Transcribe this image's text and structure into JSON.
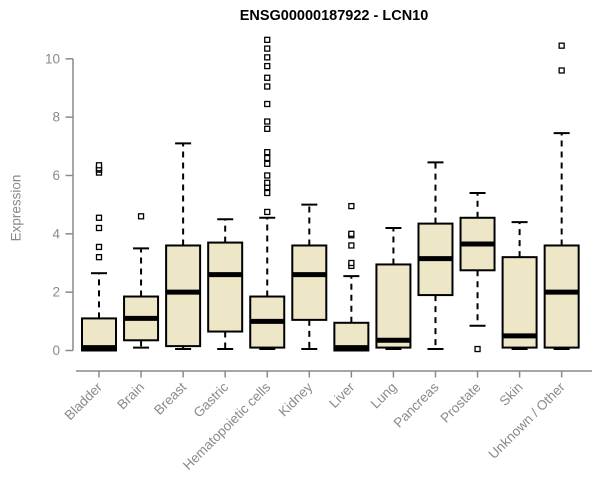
{
  "chart_data": {
    "type": "boxplot",
    "title": "ENSG00000187922 - LCN10",
    "xlabel": "",
    "ylabel": "Expression",
    "ylim": [
      0,
      10
    ],
    "yticks": [
      0,
      2,
      4,
      6,
      8,
      10
    ],
    "grid": false,
    "categories": [
      "Bladder",
      "Brain",
      "Breast",
      "Gastric",
      "Hematopoietic cells",
      "Kidney",
      "Liver",
      "Lung",
      "Pancreas",
      "Prostate",
      "Skin",
      "Unknown / Other"
    ],
    "series": [
      {
        "category": "Bladder",
        "whisker_low": 0.0,
        "q1": 0.0,
        "median": 0.1,
        "q3": 1.1,
        "whisker_high": 2.65,
        "outliers": [
          3.2,
          3.55,
          4.2,
          4.55,
          6.1,
          6.2,
          6.25,
          6.35
        ]
      },
      {
        "category": "Brain",
        "whisker_low": 0.1,
        "q1": 0.35,
        "median": 1.1,
        "q3": 1.85,
        "whisker_high": 3.5,
        "outliers": [
          4.6
        ]
      },
      {
        "category": "Breast",
        "whisker_low": 0.05,
        "q1": 0.15,
        "median": 2.0,
        "q3": 3.6,
        "whisker_high": 7.1,
        "outliers": []
      },
      {
        "category": "Gastric",
        "whisker_low": 0.05,
        "q1": 0.65,
        "median": 2.6,
        "q3": 3.7,
        "whisker_high": 4.5,
        "outliers": []
      },
      {
        "category": "Hematopoietic cells",
        "whisker_low": 0.05,
        "q1": 0.1,
        "median": 1.0,
        "q3": 1.85,
        "whisker_high": 4.55,
        "outliers": [
          4.75,
          5.4,
          5.6,
          5.75,
          6.0,
          6.4,
          6.6,
          6.8,
          7.6,
          7.85,
          8.45,
          9.05,
          9.35,
          9.75,
          10.05,
          10.35,
          10.65
        ]
      },
      {
        "category": "Kidney",
        "whisker_low": 0.05,
        "q1": 1.05,
        "median": 2.6,
        "q3": 3.6,
        "whisker_high": 5.0,
        "outliers": []
      },
      {
        "category": "Liver",
        "whisker_low": 0.0,
        "q1": 0.0,
        "median": 0.1,
        "q3": 0.95,
        "whisker_high": 2.55,
        "outliers": [
          2.9,
          3.0,
          3.6,
          3.95,
          4.0,
          4.95
        ]
      },
      {
        "category": "Lung",
        "whisker_low": 0.05,
        "q1": 0.1,
        "median": 0.35,
        "q3": 2.95,
        "whisker_high": 4.2,
        "outliers": []
      },
      {
        "category": "Pancreas",
        "whisker_low": 0.05,
        "q1": 1.9,
        "median": 3.15,
        "q3": 4.35,
        "whisker_high": 6.45,
        "outliers": []
      },
      {
        "category": "Prostate",
        "whisker_low": 0.85,
        "q1": 2.75,
        "median": 3.65,
        "q3": 4.55,
        "whisker_high": 5.4,
        "outliers": [
          0.05
        ]
      },
      {
        "category": "Skin",
        "whisker_low": 0.05,
        "q1": 0.1,
        "median": 0.5,
        "q3": 3.2,
        "whisker_high": 4.4,
        "outliers": []
      },
      {
        "category": "Unknown / Other",
        "whisker_low": 0.05,
        "q1": 0.1,
        "median": 2.0,
        "q3": 3.6,
        "whisker_high": 7.45,
        "outliers": [
          9.6,
          10.45
        ]
      }
    ]
  },
  "colors": {
    "box_fill": "#ede6c7",
    "line": "#000000",
    "axis": "#8a8a8a",
    "title_text": "#000000",
    "background": "#ffffff"
  }
}
